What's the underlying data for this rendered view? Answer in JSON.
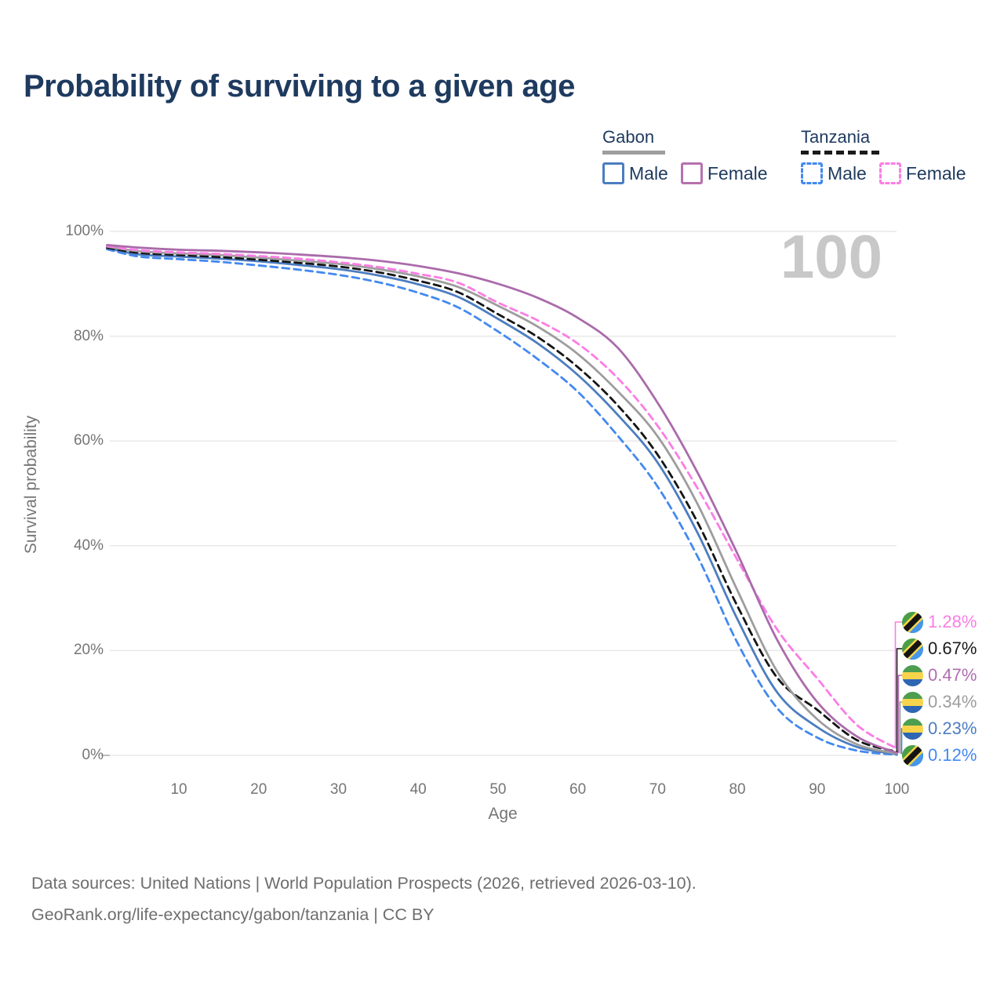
{
  "header": {
    "title": "Probability of surviving to a given age"
  },
  "watermark": {
    "text": "100"
  },
  "legend": {
    "groups": [
      {
        "country": "Gabon",
        "line_style": "solid",
        "underline_color": "#9e9e9e",
        "items": [
          {
            "label": "Male",
            "color": "#4c7dc0",
            "dashed": false
          },
          {
            "label": "Female",
            "color": "#b671ae",
            "dashed": false
          }
        ]
      },
      {
        "country": "Tanzania",
        "line_style": "dashed",
        "underline_color": "#1a1a1a",
        "items": [
          {
            "label": "Male",
            "color": "#4389f0",
            "dashed": true
          },
          {
            "label": "Female",
            "color": "#fb7de4",
            "dashed": true
          }
        ]
      }
    ]
  },
  "y_axis": {
    "title": "Survival probability",
    "ticks": [
      {
        "label": "100%",
        "value": 100
      },
      {
        "label": "80%",
        "value": 80
      },
      {
        "label": "60%",
        "value": 60
      },
      {
        "label": "40%",
        "value": 40
      },
      {
        "label": "20%",
        "value": 20
      },
      {
        "label": "0%",
        "value": 0
      }
    ]
  },
  "x_axis": {
    "title": "Age",
    "ticks": [
      {
        "label": "10",
        "value": 10
      },
      {
        "label": "20",
        "value": 20
      },
      {
        "label": "30",
        "value": 30
      },
      {
        "label": "40",
        "value": 40
      },
      {
        "label": "50",
        "value": 50
      },
      {
        "label": "60",
        "value": 60
      },
      {
        "label": "70",
        "value": 70
      },
      {
        "label": "80",
        "value": 80
      },
      {
        "label": "90",
        "value": 90
      },
      {
        "label": "100",
        "value": 100
      }
    ]
  },
  "end_labels": [
    {
      "value": "1.28%",
      "pct": 1.28,
      "color": "#fb7de4",
      "flag": "tanzania",
      "series": "Tanzania Female"
    },
    {
      "value": "0.67%",
      "pct": 0.67,
      "color": "#1a1a1a",
      "flag": "tanzania",
      "series": "Tanzania"
    },
    {
      "value": "0.47%",
      "pct": 0.47,
      "color": "#b06cb0",
      "flag": "gabon",
      "series": "Gabon Female"
    },
    {
      "value": "0.34%",
      "pct": 0.34,
      "color": "#9d9d9d",
      "flag": "gabon",
      "series": "Gabon"
    },
    {
      "value": "0.23%",
      "pct": 0.23,
      "color": "#4c7dc0",
      "flag": "gabon",
      "series": "Gabon Male"
    },
    {
      "value": "0.12%",
      "pct": 0.12,
      "color": "#4389f0",
      "flag": "tanzania",
      "series": "Tanzania Male"
    }
  ],
  "flags": {
    "gabon": {
      "green": "#4d9e4f",
      "yellow": "#f8d44c",
      "blue": "#2e66b2"
    },
    "tanzania": {
      "green": "#4a9e45",
      "blue": "#4596ec",
      "black": "#141414",
      "yellow": "#f8d44c"
    }
  },
  "footer": {
    "line1": "Data sources: United Nations | World Population Prospects (2026, retrieved 2026-03-10).",
    "line2": "GeoRank.org/life-expectancy/gabon/tanzania | CC BY"
  },
  "chart_data": {
    "type": "line",
    "title": "Probability of surviving to a given age",
    "xlabel": "Age",
    "ylabel": "Survival probability",
    "xlim": [
      1,
      100
    ],
    "ylim": [
      0,
      100
    ],
    "grid": "horizontal",
    "legend_position": "top-right",
    "series": [
      {
        "name": "Tanzania Male",
        "color": "#4389f0",
        "dash": true,
        "points": [
          [
            1,
            96.6
          ],
          [
            5,
            95.2
          ],
          [
            10,
            94.7
          ],
          [
            15,
            94.2
          ],
          [
            20,
            93.5
          ],
          [
            25,
            92.7
          ],
          [
            30,
            91.7
          ],
          [
            35,
            90.3
          ],
          [
            40,
            88.3
          ],
          [
            45,
            85.5
          ],
          [
            50,
            80.9
          ],
          [
            55,
            75.6
          ],
          [
            60,
            69.4
          ],
          [
            65,
            61.0
          ],
          [
            70,
            51.3
          ],
          [
            75,
            38.0
          ],
          [
            80,
            21.5
          ],
          [
            85,
            9.0
          ],
          [
            90,
            3.4
          ],
          [
            95,
            0.9
          ],
          [
            100,
            0.12
          ]
        ]
      },
      {
        "name": "Gabon Male",
        "color": "#4c7dc0",
        "dash": false,
        "points": [
          [
            1,
            96.8
          ],
          [
            5,
            95.6
          ],
          [
            10,
            95.2
          ],
          [
            15,
            94.8
          ],
          [
            20,
            94.3
          ],
          [
            25,
            93.6
          ],
          [
            30,
            92.8
          ],
          [
            35,
            91.6
          ],
          [
            40,
            89.9
          ],
          [
            45,
            87.5
          ],
          [
            50,
            83.3
          ],
          [
            55,
            78.6
          ],
          [
            60,
            72.6
          ],
          [
            65,
            65.0
          ],
          [
            70,
            55.9
          ],
          [
            75,
            42.5
          ],
          [
            80,
            26.0
          ],
          [
            85,
            12.0
          ],
          [
            90,
            5.4
          ],
          [
            95,
            1.6
          ],
          [
            100,
            0.23
          ]
        ]
      },
      {
        "name": "Tanzania",
        "color": "#141414",
        "dash": true,
        "points": [
          [
            1,
            96.9
          ],
          [
            5,
            95.9
          ],
          [
            10,
            95.5
          ],
          [
            15,
            95.1
          ],
          [
            20,
            94.6
          ],
          [
            25,
            94.0
          ],
          [
            30,
            93.3
          ],
          [
            35,
            92.2
          ],
          [
            40,
            90.6
          ],
          [
            45,
            88.4
          ],
          [
            50,
            84.2
          ],
          [
            55,
            79.8
          ],
          [
            60,
            74.1
          ],
          [
            65,
            66.8
          ],
          [
            70,
            57.4
          ],
          [
            75,
            44.5
          ],
          [
            80,
            28.5
          ],
          [
            85,
            14.8
          ],
          [
            90,
            8.7
          ],
          [
            95,
            2.9
          ],
          [
            100,
            0.67
          ]
        ]
      },
      {
        "name": "Gabon",
        "color": "#9d9d9d",
        "dash": false,
        "points": [
          [
            1,
            97.1
          ],
          [
            5,
            96.2
          ],
          [
            10,
            95.8
          ],
          [
            15,
            95.5
          ],
          [
            20,
            95.0
          ],
          [
            25,
            94.4
          ],
          [
            30,
            93.8
          ],
          [
            35,
            92.8
          ],
          [
            40,
            91.4
          ],
          [
            45,
            89.4
          ],
          [
            50,
            85.8
          ],
          [
            55,
            81.8
          ],
          [
            60,
            76.6
          ],
          [
            65,
            69.5
          ],
          [
            70,
            60.9
          ],
          [
            75,
            48.0
          ],
          [
            80,
            31.5
          ],
          [
            85,
            16.0
          ],
          [
            90,
            6.9
          ],
          [
            95,
            2.1
          ],
          [
            100,
            0.34
          ]
        ]
      },
      {
        "name": "Tanzania Female",
        "color": "#fb7de4",
        "dash": true,
        "points": [
          [
            1,
            97.2
          ],
          [
            5,
            96.4
          ],
          [
            10,
            96.0
          ],
          [
            15,
            95.7
          ],
          [
            20,
            95.3
          ],
          [
            25,
            94.8
          ],
          [
            30,
            94.1
          ],
          [
            35,
            93.2
          ],
          [
            40,
            91.9
          ],
          [
            45,
            90.2
          ],
          [
            50,
            86.4
          ],
          [
            55,
            83.0
          ],
          [
            60,
            78.6
          ],
          [
            65,
            72.0
          ],
          [
            70,
            62.9
          ],
          [
            75,
            51.0
          ],
          [
            80,
            37.3
          ],
          [
            85,
            24.0
          ],
          [
            90,
            14.7
          ],
          [
            95,
            5.8
          ],
          [
            100,
            1.28
          ]
        ]
      },
      {
        "name": "Gabon Female",
        "color": "#aa6bab",
        "dash": false,
        "points": [
          [
            1,
            97.4
          ],
          [
            5,
            96.9
          ],
          [
            10,
            96.5
          ],
          [
            15,
            96.3
          ],
          [
            20,
            96.0
          ],
          [
            25,
            95.6
          ],
          [
            30,
            95.1
          ],
          [
            35,
            94.4
          ],
          [
            40,
            93.4
          ],
          [
            45,
            92.0
          ],
          [
            50,
            90.0
          ],
          [
            55,
            87.3
          ],
          [
            60,
            83.5
          ],
          [
            65,
            77.8
          ],
          [
            70,
            67.3
          ],
          [
            75,
            54.0
          ],
          [
            80,
            38.5
          ],
          [
            85,
            22.0
          ],
          [
            90,
            10.2
          ],
          [
            95,
            3.6
          ],
          [
            100,
            0.47
          ]
        ]
      }
    ]
  }
}
